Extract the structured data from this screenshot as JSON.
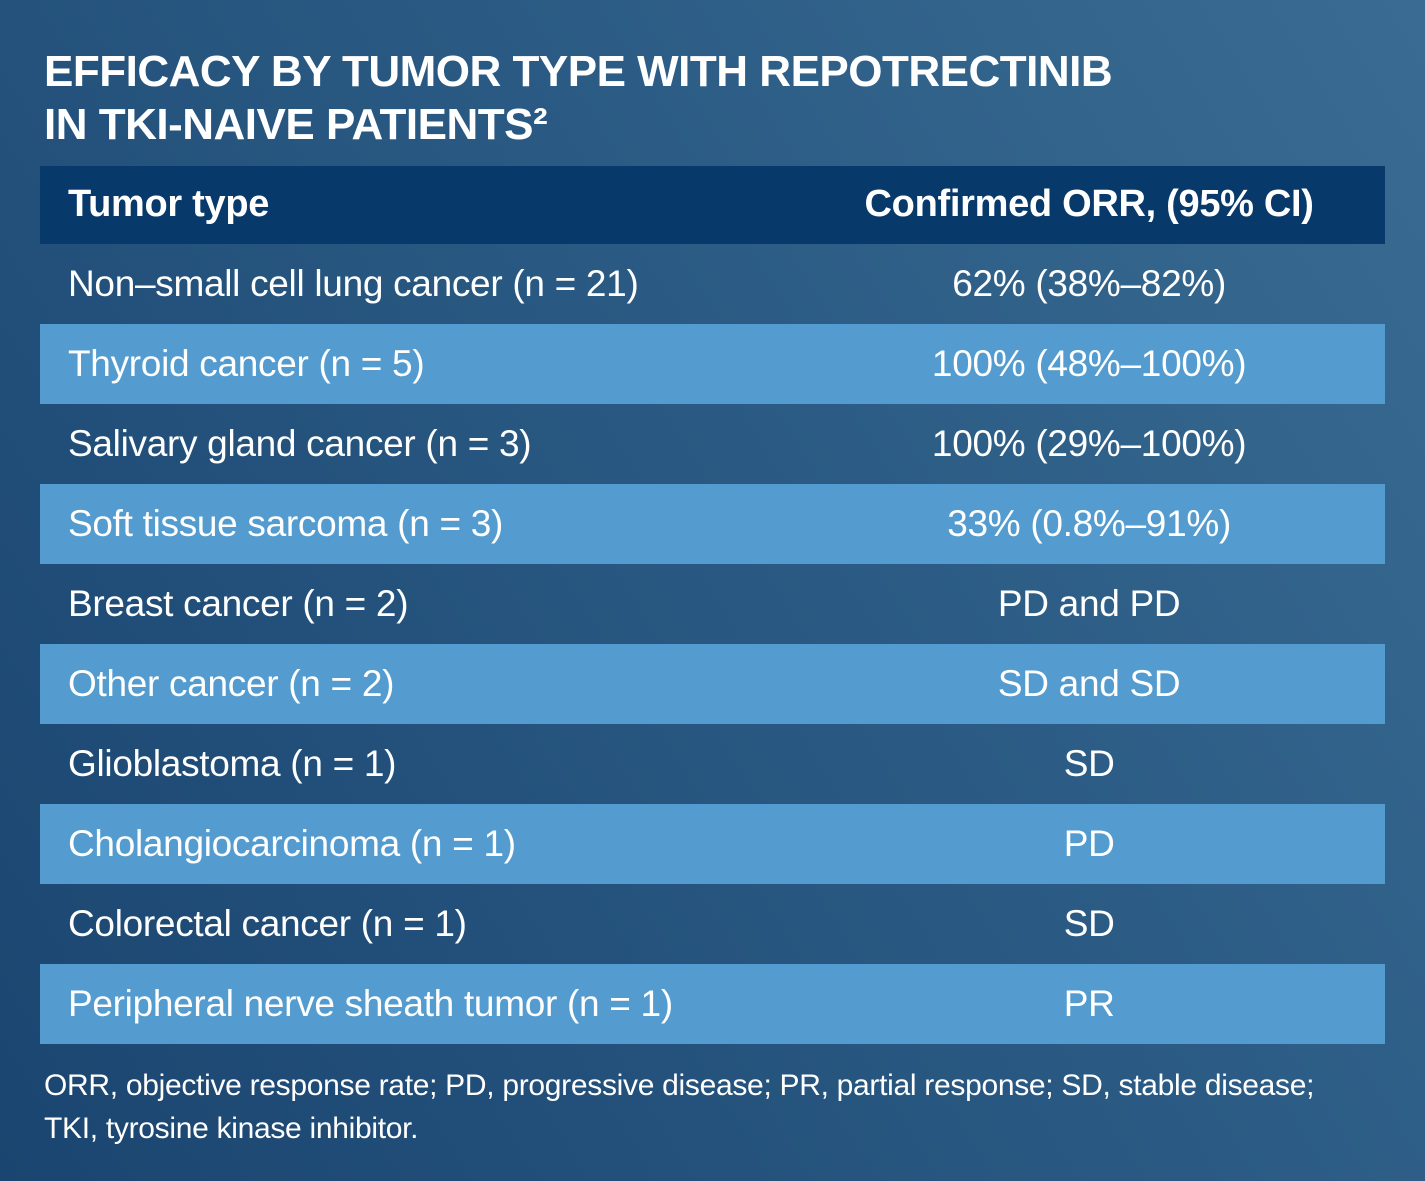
{
  "title": {
    "line1": "EFFICACY BY TUMOR TYPE WITH REPOTRECTINIB",
    "line2": "IN TKI-NAIVE PATIENTS²"
  },
  "table": {
    "header": {
      "tumor_type": "Tumor type",
      "orr": "Confirmed ORR, (95% CI)"
    },
    "rows": [
      {
        "tumor_type": "Non–small cell lung cancer (n = 21)",
        "orr": "62% (38%–82%)"
      },
      {
        "tumor_type": "Thyroid cancer (n = 5)",
        "orr": "100% (48%–100%)"
      },
      {
        "tumor_type": "Salivary gland cancer (n = 3)",
        "orr": "100% (29%–100%)"
      },
      {
        "tumor_type": "Soft tissue sarcoma (n = 3)",
        "orr": "33% (0.8%–91%)"
      },
      {
        "tumor_type": "Breast cancer (n = 2)",
        "orr": "PD and PD"
      },
      {
        "tumor_type": "Other cancer (n = 2)",
        "orr": "SD and SD"
      },
      {
        "tumor_type": "Glioblastoma (n = 1)",
        "orr": "SD"
      },
      {
        "tumor_type": "Cholangiocarcinoma (n = 1)",
        "orr": "PD"
      },
      {
        "tumor_type": "Colorectal cancer (n = 1)",
        "orr": "SD"
      },
      {
        "tumor_type": "Peripheral nerve sheath tumor (n = 1)",
        "orr": "PR"
      }
    ]
  },
  "footnote_lines": [
    "ORR, objective response rate; PD, progressive disease; PR, partial response; SD, stable disease;",
    "TKI, tyrosine kinase inhibitor."
  ],
  "colors": {
    "background_gradient_dark": "#1a4570",
    "background_gradient_light": "#3a6c93",
    "header_row_bg": "#08396b",
    "band_row_bg": "#549ccf",
    "text": "#ffffff"
  }
}
